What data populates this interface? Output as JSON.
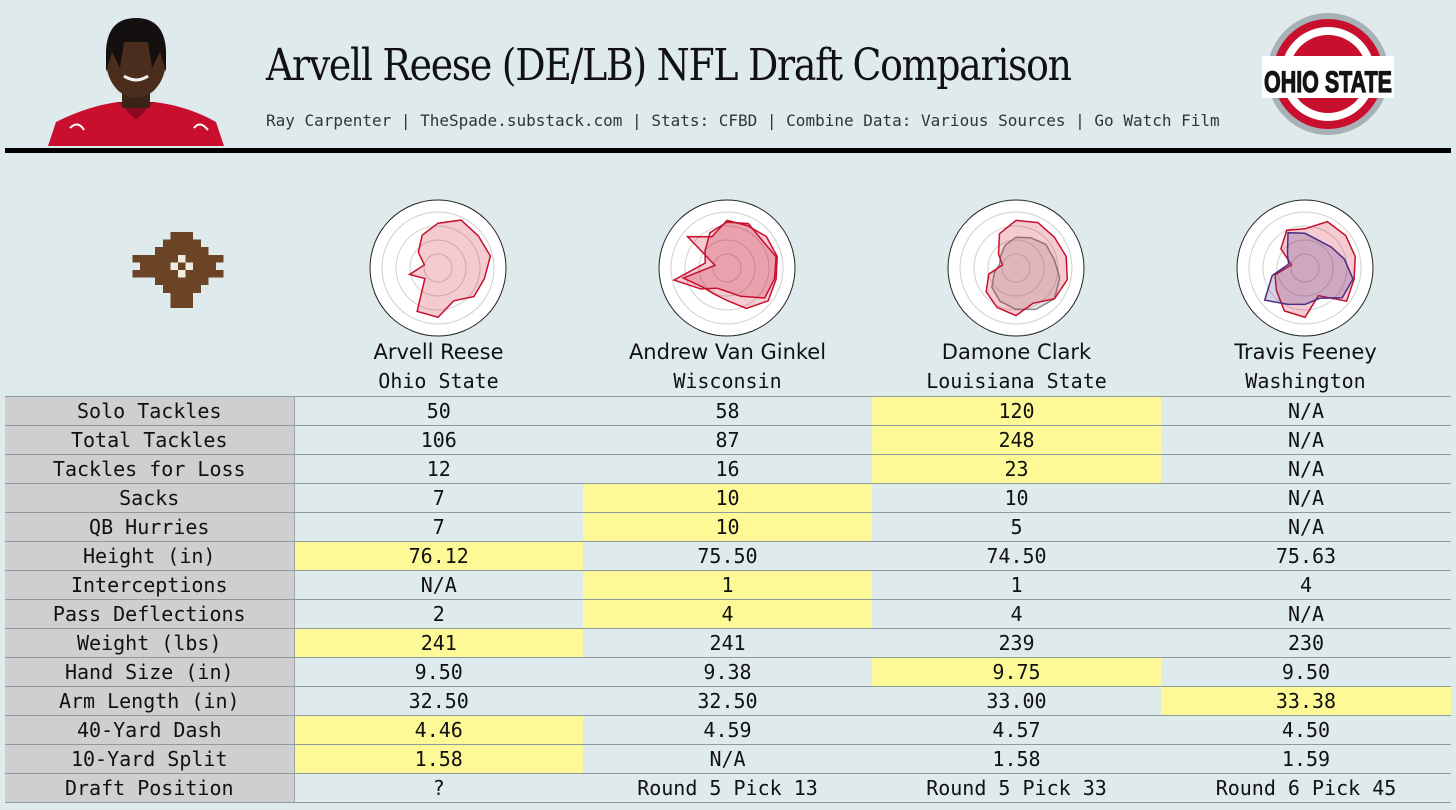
{
  "header": {
    "title": "Arvell Reese (DE/LB) NFL Draft Comparison",
    "subtitle": "Ray Carpenter | TheSpade.substack.com | Stats: CFBD | Combine Data: Various Sources | Go Watch Film",
    "team_logo_text": "OHIO STATE"
  },
  "colors": {
    "background": "#dfeaec",
    "label_cell": "#cfcfcf",
    "highlight": "#fcf996",
    "ohio_red": "#c8102e",
    "ohio_gray": "#a7b1b7",
    "spade_brown": "#6b4426",
    "radar_red": "#c8102e",
    "radar_gray": "#8a8a8a",
    "radar_purple": "#4b2e83"
  },
  "players": [
    {
      "name": "Arvell Reese",
      "school": "Ohio State"
    },
    {
      "name": "Andrew Van Ginkel",
      "school": "Wisconsin"
    },
    {
      "name": "Damone Clark",
      "school": "Louisiana State"
    },
    {
      "name": "Travis Feeney",
      "school": "Washington"
    }
  ],
  "chart_data": [
    {
      "type": "table",
      "title": "Arvell Reese (DE/LB) NFL Draft Comparison",
      "columns": [
        "Arvell Reese",
        "Andrew Van Ginkel",
        "Damone Clark",
        "Travis Feeney"
      ],
      "rows": [
        {
          "label": "Solo Tackles",
          "values": [
            "50",
            "58",
            "120",
            "N/A"
          ],
          "highlight": [
            false,
            false,
            true,
            false
          ]
        },
        {
          "label": "Total Tackles",
          "values": [
            "106",
            "87",
            "248",
            "N/A"
          ],
          "highlight": [
            false,
            false,
            true,
            false
          ]
        },
        {
          "label": "Tackles for Loss",
          "values": [
            "12",
            "16",
            "23",
            "N/A"
          ],
          "highlight": [
            false,
            false,
            true,
            false
          ]
        },
        {
          "label": "Sacks",
          "values": [
            "7",
            "10",
            "10",
            "N/A"
          ],
          "highlight": [
            false,
            true,
            false,
            false
          ]
        },
        {
          "label": "QB Hurries",
          "values": [
            "7",
            "10",
            "5",
            "N/A"
          ],
          "highlight": [
            false,
            true,
            false,
            false
          ]
        },
        {
          "label": "Height (in)",
          "values": [
            "76.12",
            "75.50",
            "74.50",
            "75.63"
          ],
          "highlight": [
            true,
            false,
            false,
            false
          ]
        },
        {
          "label": "Interceptions",
          "values": [
            "N/A",
            "1",
            "1",
            "4"
          ],
          "highlight": [
            false,
            true,
            false,
            false
          ]
        },
        {
          "label": "Pass Deflections",
          "values": [
            "2",
            "4",
            "4",
            "N/A"
          ],
          "highlight": [
            false,
            true,
            false,
            false
          ]
        },
        {
          "label": "Weight (lbs)",
          "values": [
            "241",
            "241",
            "239",
            "230"
          ],
          "highlight": [
            true,
            false,
            false,
            false
          ]
        },
        {
          "label": "Hand Size (in)",
          "values": [
            "9.50",
            "9.38",
            "9.75",
            "9.50"
          ],
          "highlight": [
            false,
            false,
            true,
            false
          ]
        },
        {
          "label": "Arm Length (in)",
          "values": [
            "32.50",
            "32.50",
            "33.00",
            "33.38"
          ],
          "highlight": [
            false,
            false,
            false,
            true
          ]
        },
        {
          "label": "40-Yard Dash",
          "values": [
            "4.46",
            "4.59",
            "4.57",
            "4.50"
          ],
          "highlight": [
            true,
            false,
            false,
            false
          ]
        },
        {
          "label": "10-Yard Split",
          "values": [
            "1.58",
            "N/A",
            "1.58",
            "1.59"
          ],
          "highlight": [
            true,
            false,
            false,
            false
          ]
        },
        {
          "label": "Draft Position",
          "values": [
            "?",
            "Round 5 Pick 13",
            "Round 5 Pick 33",
            "Round 6 Pick 45"
          ],
          "highlight": [
            false,
            false,
            false,
            false
          ]
        }
      ]
    },
    {
      "type": "radar",
      "rings": 4,
      "scale": [
        0,
        1
      ],
      "series": [
        {
          "player": "Arvell Reese",
          "color": "radar_red",
          "values": [
            0.8,
            0.95,
            0.92,
            0.96,
            0.85,
            0.82,
            0.65,
            0.88,
            0.86,
            0.3,
            0.52,
            0.25,
            0.45,
            0.65
          ]
        },
        {
          "player": "Andrew Van Ginkel (comparison)",
          "color": "radar_red",
          "values": [
            0.85,
            0.84,
            0.9,
            0.92,
            0.9,
            0.94,
            0.8,
            0.58,
            0.52,
            0.55,
            0.8,
            0.22,
            0.9,
            0.62
          ]
        },
        {
          "player": "Andrew Van Ginkel",
          "color": "radar_red",
          "values": [
            0.82,
            0.88,
            0.8,
            0.9,
            0.87,
            0.86,
            0.56,
            0.42,
            0.4,
            0.6,
            0.97,
            0.4,
            0.5,
            0.7
          ]
        },
        {
          "player": "Damone Clark (comparison)",
          "color": "radar_gray",
          "values": [
            0.55,
            0.6,
            0.68,
            0.7,
            0.8,
            0.88,
            0.82,
            0.74,
            0.66,
            0.55,
            0.4,
            0.3,
            0.35,
            0.45
          ]
        },
        {
          "player": "Damone Clark",
          "color": "radar_red",
          "values": [
            0.85,
            0.9,
            0.88,
            0.92,
            0.94,
            0.88,
            0.7,
            0.85,
            0.78,
            0.68,
            0.5,
            0.25,
            0.4,
            0.68
          ]
        },
        {
          "player": "Travis Feeney (comparison)",
          "color": "radar_red",
          "values": [
            0.7,
            0.92,
            0.93,
            0.92,
            0.9,
            0.95,
            0.55,
            0.88,
            0.85,
            0.65,
            0.55,
            0.25,
            0.55,
            0.75
          ]
        },
        {
          "player": "Travis Feeney",
          "color": "radar_purple",
          "values": [
            0.62,
            0.55,
            0.6,
            0.72,
            0.88,
            0.85,
            0.6,
            0.65,
            0.72,
            0.92,
            0.6,
            0.3,
            0.4,
            0.7
          ]
        }
      ]
    }
  ]
}
